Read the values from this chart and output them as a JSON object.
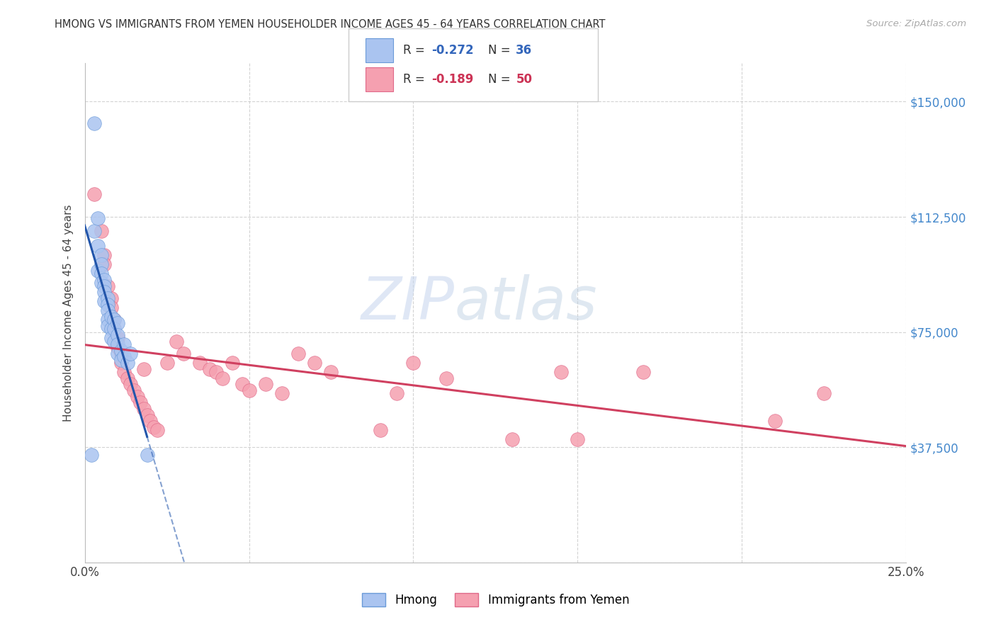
{
  "title": "HMONG VS IMMIGRANTS FROM YEMEN HOUSEHOLDER INCOME AGES 45 - 64 YEARS CORRELATION CHART",
  "source": "Source: ZipAtlas.com",
  "ylabel": "Householder Income Ages 45 - 64 years",
  "xlim": [
    0.0,
    0.25
  ],
  "ylim": [
    0,
    162500
  ],
  "xticks": [
    0.0,
    0.05,
    0.1,
    0.15,
    0.2,
    0.25
  ],
  "yticks": [
    0,
    37500,
    75000,
    112500,
    150000
  ],
  "ytick_labels": [
    "",
    "$37,500",
    "$75,000",
    "$112,500",
    "$150,000"
  ],
  "xtick_labels": [
    "0.0%",
    "",
    "",
    "",
    "",
    "25.0%"
  ],
  "background_color": "#ffffff",
  "grid_color": "#c8c8c8",
  "hmong_color": "#aac4f0",
  "yemen_color": "#f5a0b0",
  "hmong_edge_color": "#6a9ad8",
  "yemen_edge_color": "#e06888",
  "hmong_line_color": "#2255aa",
  "yemen_line_color": "#d04060",
  "hmong_r": -0.272,
  "hmong_n": 36,
  "yemen_r": -0.189,
  "yemen_n": 50,
  "legend_label_hmong": "Hmong",
  "legend_label_yemen": "Immigrants from Yemen",
  "watermark_zip": "ZIP",
  "watermark_atlas": "atlas",
  "hmong_x": [
    0.002,
    0.003,
    0.003,
    0.004,
    0.004,
    0.004,
    0.005,
    0.005,
    0.005,
    0.005,
    0.006,
    0.006,
    0.006,
    0.006,
    0.007,
    0.007,
    0.007,
    0.007,
    0.007,
    0.008,
    0.008,
    0.008,
    0.009,
    0.009,
    0.009,
    0.01,
    0.01,
    0.01,
    0.01,
    0.011,
    0.011,
    0.012,
    0.012,
    0.013,
    0.014,
    0.019
  ],
  "hmong_y": [
    35000,
    143000,
    108000,
    112000,
    103000,
    95000,
    100000,
    97000,
    94000,
    91000,
    92000,
    90000,
    88000,
    85000,
    86000,
    84000,
    82000,
    79000,
    77000,
    80000,
    76000,
    73000,
    79000,
    76000,
    72000,
    78000,
    74000,
    71000,
    68000,
    69000,
    66000,
    71000,
    67000,
    65000,
    68000,
    35000
  ],
  "yemen_x": [
    0.003,
    0.005,
    0.006,
    0.006,
    0.007,
    0.008,
    0.008,
    0.009,
    0.009,
    0.01,
    0.01,
    0.011,
    0.011,
    0.012,
    0.013,
    0.014,
    0.015,
    0.016,
    0.017,
    0.018,
    0.018,
    0.019,
    0.02,
    0.021,
    0.022,
    0.025,
    0.028,
    0.03,
    0.035,
    0.038,
    0.04,
    0.042,
    0.045,
    0.048,
    0.05,
    0.055,
    0.06,
    0.065,
    0.07,
    0.075,
    0.09,
    0.095,
    0.1,
    0.11,
    0.13,
    0.145,
    0.15,
    0.17,
    0.21,
    0.225
  ],
  "yemen_y": [
    120000,
    108000,
    100000,
    97000,
    90000,
    86000,
    83000,
    79000,
    76000,
    73000,
    70000,
    68000,
    65000,
    62000,
    60000,
    58000,
    56000,
    54000,
    52000,
    50000,
    63000,
    48000,
    46000,
    44000,
    43000,
    65000,
    72000,
    68000,
    65000,
    63000,
    62000,
    60000,
    65000,
    58000,
    56000,
    58000,
    55000,
    68000,
    65000,
    62000,
    43000,
    55000,
    65000,
    60000,
    40000,
    62000,
    40000,
    62000,
    46000,
    55000
  ]
}
